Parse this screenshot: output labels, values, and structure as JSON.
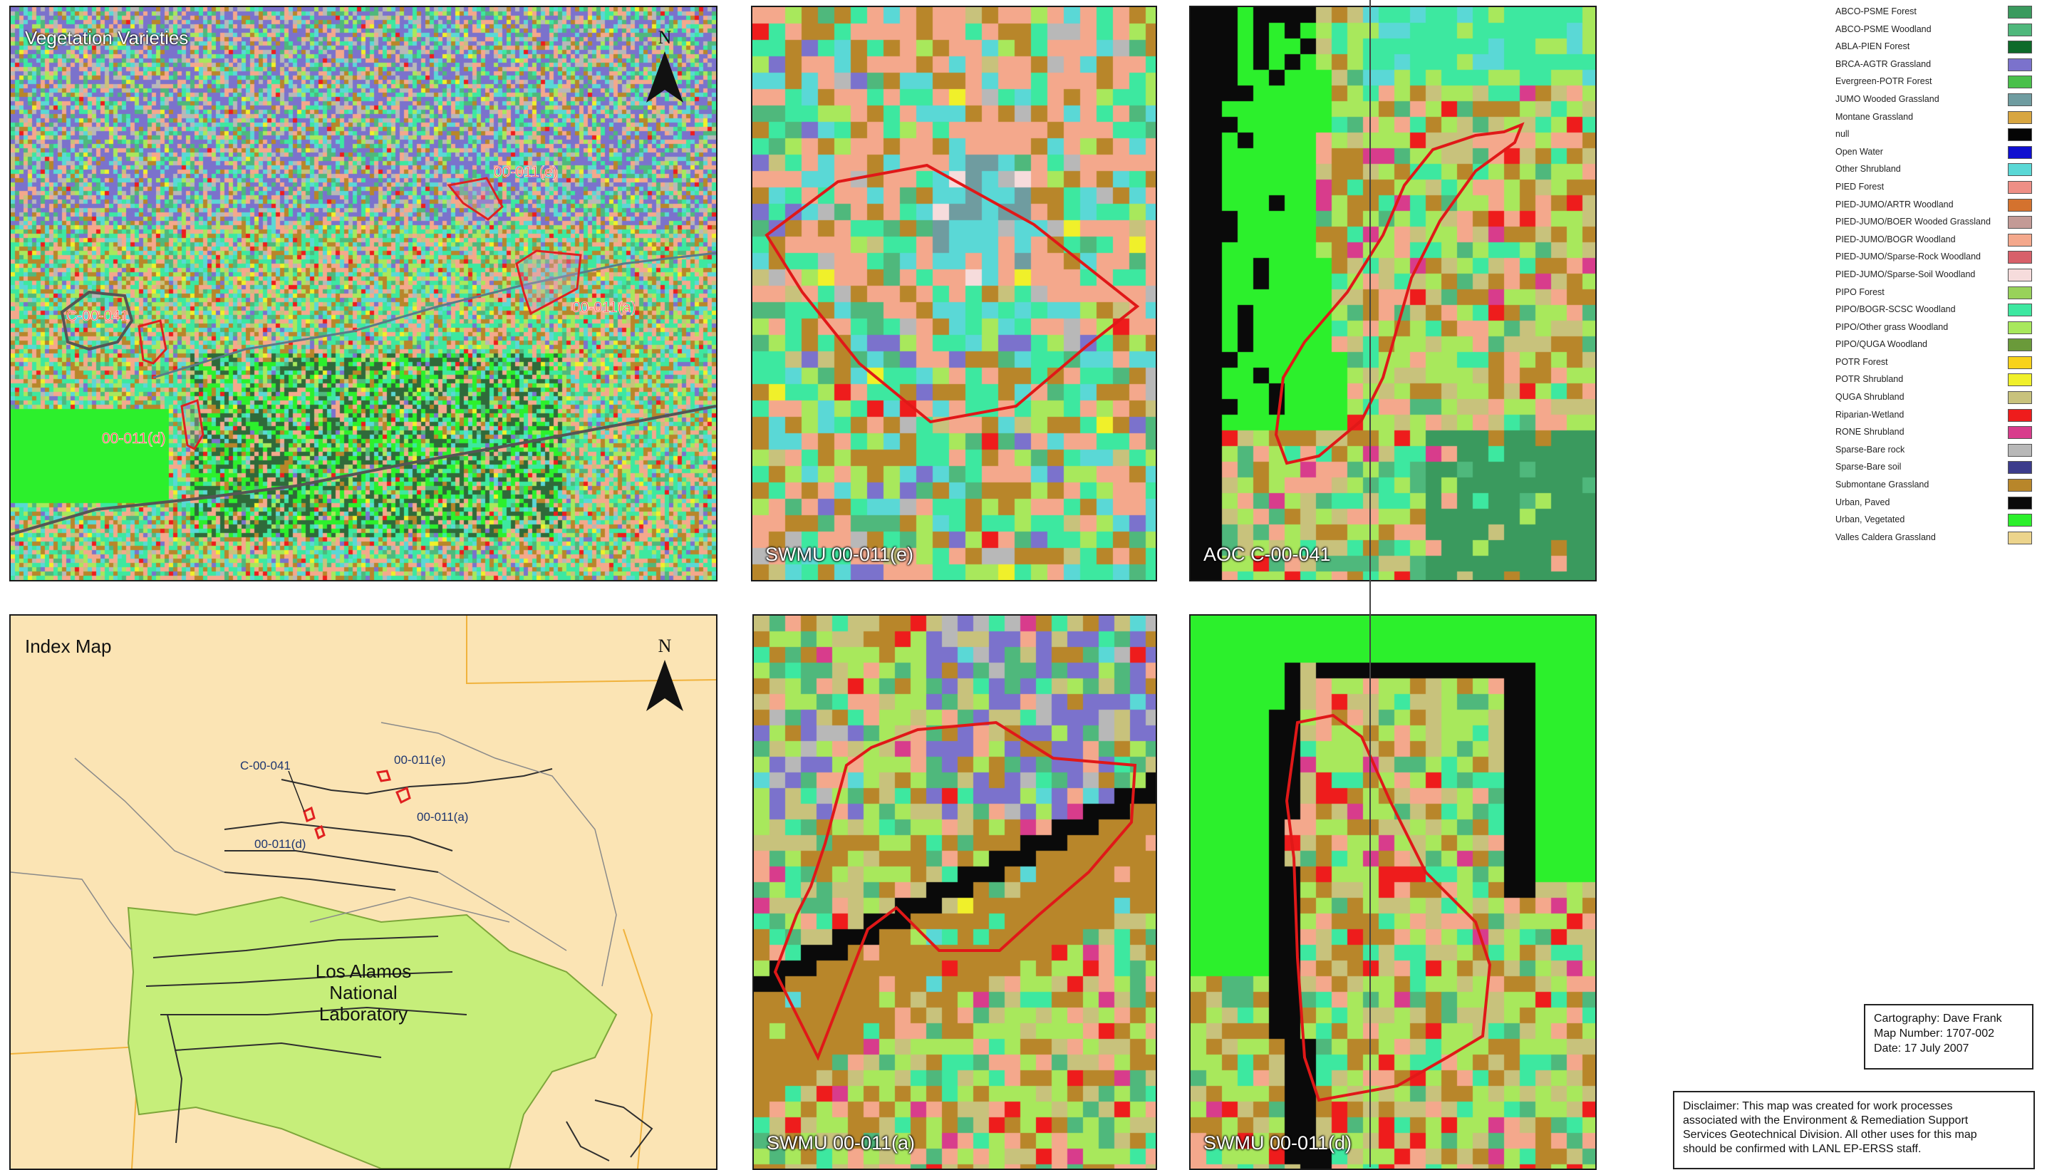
{
  "panels": {
    "vegetation": {
      "title": "Vegetation Varieties",
      "north": "N"
    },
    "index": {
      "title": "Index Map",
      "north": "N",
      "lab_line1": "Los Alamos",
      "lab_line2": "National",
      "lab_line3": "Laboratory"
    },
    "swmu_e": {
      "label": "SWMU 00-011(e)"
    },
    "aoc_c": {
      "label": "AOC C-00-041"
    },
    "swmu_a": {
      "label": "SWMU 00-011(a)"
    },
    "swmu_d": {
      "label": "SWMU 00-011(d)"
    }
  },
  "site_labels": {
    "e": "00-011(e)",
    "a": "00-011(a)",
    "c": "C-00-041",
    "d": "00-011(d)"
  },
  "legend": [
    {
      "label": "ABCO-PSME Forest",
      "color": "#3a9a5e"
    },
    {
      "label": "ABCO-PSME Woodland",
      "color": "#4fb87c"
    },
    {
      "label": "ABLA-PIEN Forest",
      "color": "#0e6a2a"
    },
    {
      "label": "BRCA-AGTR Grassland",
      "color": "#7b72cc"
    },
    {
      "label": "Evergreen-POTR Forest",
      "color": "#49c04a"
    },
    {
      "label": "JUMO Wooded Grassland",
      "color": "#6f9ca0"
    },
    {
      "label": "Montane Grassland",
      "color": "#d8a640"
    },
    {
      "label": "null",
      "color": "#050505"
    },
    {
      "label": "Open Water",
      "color": "#1010d0"
    },
    {
      "label": "Other Shrubland",
      "color": "#5ad8d6"
    },
    {
      "label": "PIED Forest",
      "color": "#ee8f86"
    },
    {
      "label": "PIED-JUMO/ARTR Woodland",
      "color": "#d4722e"
    },
    {
      "label": "PIED-JUMO/BOER Wooded Grassland",
      "color": "#c39a96"
    },
    {
      "label": "PIED-JUMO/BOGR Woodland",
      "color": "#f4a88c"
    },
    {
      "label": "PIED-JUMO/Sparse-Rock Woodland",
      "color": "#d8606a"
    },
    {
      "label": "PIED-JUMO/Sparse-Soil Woodland",
      "color": "#f6dcdc"
    },
    {
      "label": "PIPO Forest",
      "color": "#98d25a"
    },
    {
      "label": "PIPO/BOGR-SCSC Woodland",
      "color": "#3de8a0"
    },
    {
      "label": "PIPO/Other grass Woodland",
      "color": "#a8e85c"
    },
    {
      "label": "PIPO/QUGA Woodland",
      "color": "#6a9a3a"
    },
    {
      "label": "POTR Forest",
      "color": "#f8d21a"
    },
    {
      "label": "POTR Shrubland",
      "color": "#f0f02a"
    },
    {
      "label": "QUGA Shrubland",
      "color": "#c8c27c"
    },
    {
      "label": "Riparian-Wetland",
      "color": "#ee1c1c"
    },
    {
      "label": "RONE Shrubland",
      "color": "#d83c8c"
    },
    {
      "label": "Sparse-Bare rock",
      "color": "#b8b8b8"
    },
    {
      "label": "Sparse-Bare soil",
      "color": "#3c3c8c"
    },
    {
      "label": "Submontane Grassland",
      "color": "#b8862a"
    },
    {
      "label": "Urban, Paved",
      "color": "#0a0a0a"
    },
    {
      "label": "Urban, Vegetated",
      "color": "#2cf02c"
    },
    {
      "label": "Valles Caldera Grassland",
      "color": "#ecd48c"
    }
  ],
  "cartography": {
    "line1": "Cartography:  Dave Frank",
    "line2": "Map Number:  1707-002",
    "line3": "Date:  17 July 2007"
  },
  "disclaimer": {
    "line1": "Disclaimer: This map was created for work processes",
    "line2": "associated with the Environment & Remediation Support",
    "line3": "Services Geotechnical Division. All other uses for this map",
    "line4": "should be confirmed with LANL EP-ERSS staff."
  }
}
